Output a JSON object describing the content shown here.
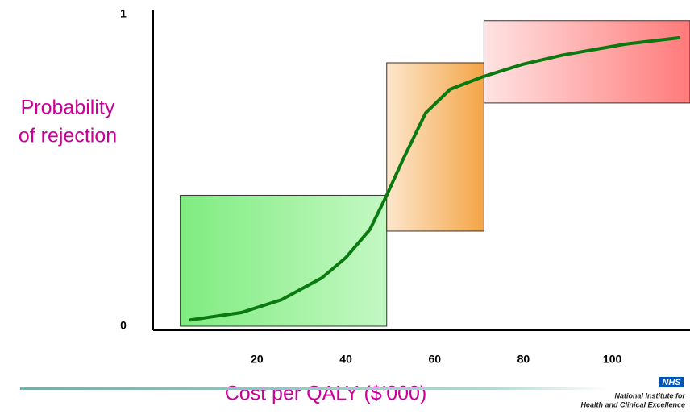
{
  "chart_data": {
    "type": "line",
    "ylabel_lines": [
      "Probability",
      "of rejection"
    ],
    "xlabel": "Cost per QALY ($’000)",
    "xlim": [
      -3.4,
      117.5
    ],
    "ylim": [
      0,
      1
    ],
    "xticks": [
      20,
      40,
      60,
      80,
      100
    ],
    "yticks": [
      0,
      1
    ],
    "regions": [
      {
        "x0": 2.7,
        "x1": 49.2,
        "y0": 0,
        "y1": 0.42,
        "colors": [
          "#7fec7f",
          "#c4f8c4"
        ]
      },
      {
        "x0": 49.2,
        "x1": 71.1,
        "y0": 0.305,
        "y1": 0.845,
        "colors": [
          "#fde6cc",
          "#f4a547"
        ]
      },
      {
        "x0": 71.1,
        "x1": 117.5,
        "y0": 0.716,
        "y1": 0.98,
        "colors": [
          "#ffe3e3",
          "#ff7a7a"
        ]
      }
    ],
    "series": [
      {
        "color": "#0a7a10",
        "x": [
          5,
          16.5,
          25.5,
          34.6,
          40,
          45.4,
          49.2,
          52.7,
          58,
          63.5,
          70.8,
          79.8,
          88.9,
          103,
          115
        ],
        "values": [
          0.02,
          0.044,
          0.085,
          0.155,
          0.22,
          0.31,
          0.42,
          0.53,
          0.685,
          0.76,
          0.8,
          0.84,
          0.87,
          0.905,
          0.925
        ]
      }
    ],
    "logo": {
      "badge": "NHS",
      "line1": "National Institute for",
      "line2": "Health and Clinical Excellence"
    }
  }
}
